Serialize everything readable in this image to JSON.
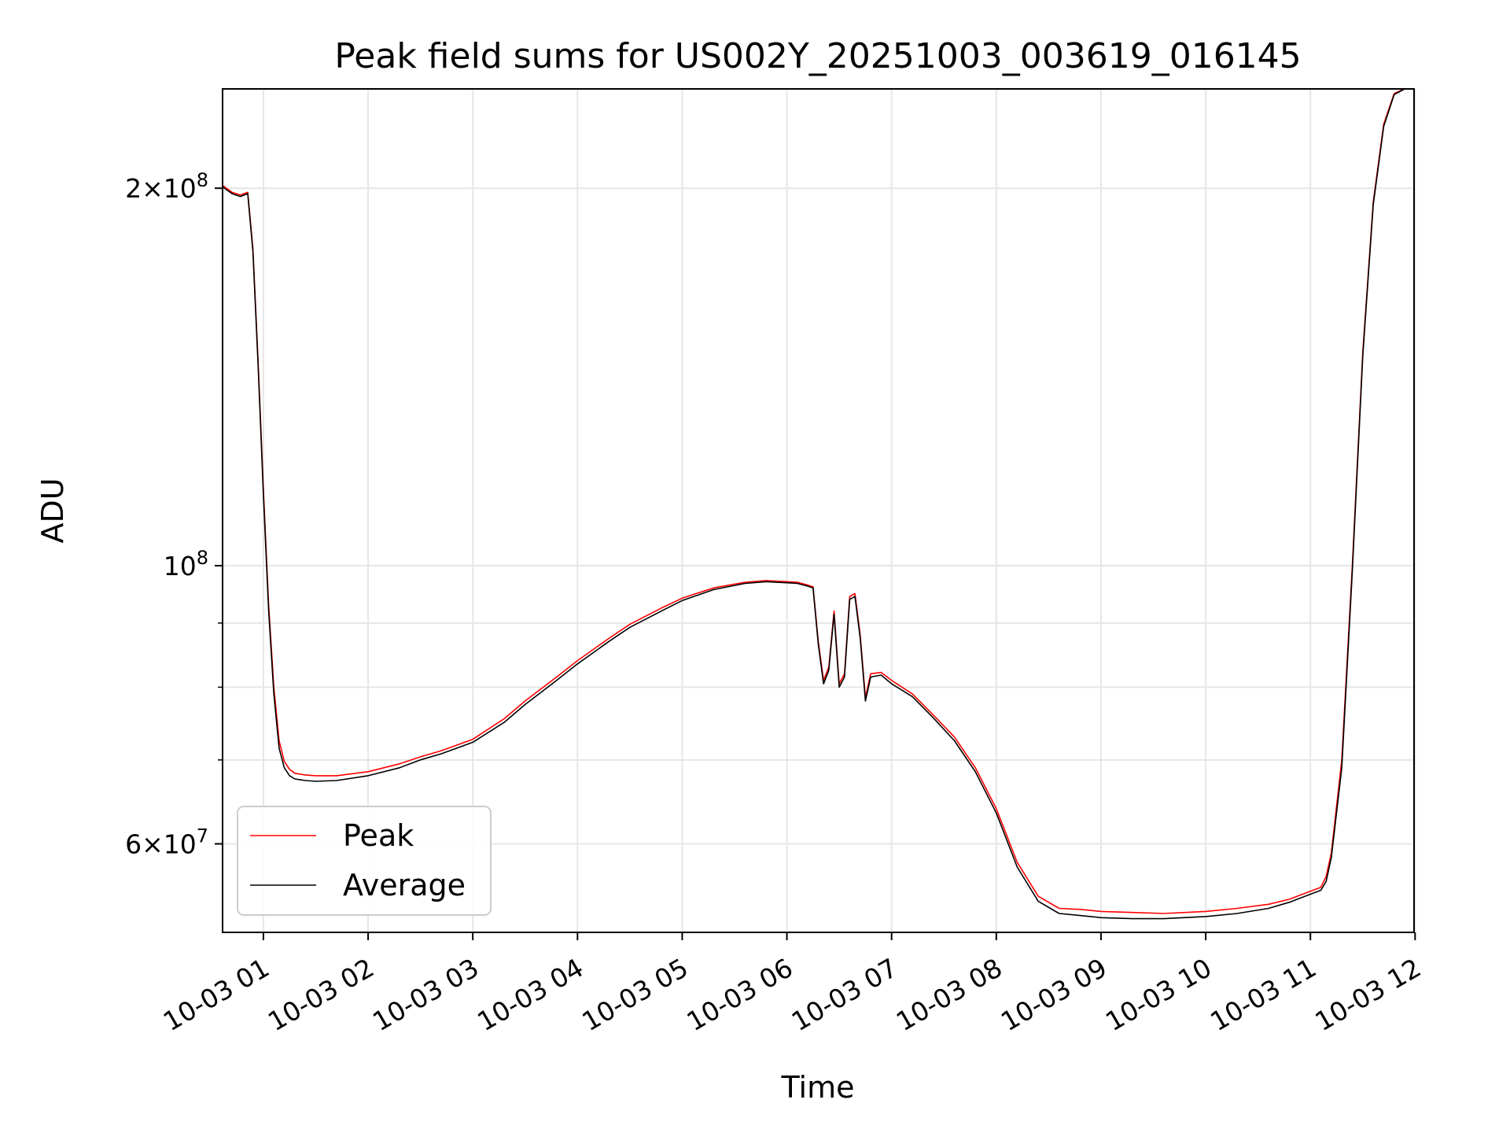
{
  "chart_data": {
    "type": "line",
    "title": "Peak field sums for US002Y_20251003_003619_016145",
    "xlabel": "Time",
    "ylabel": "ADU",
    "yscale": "log",
    "x_unit": "hours since 10-03 00:00",
    "xlim": [
      0.61,
      11.99
    ],
    "ylim": [
      51000000,
      240000000
    ],
    "grid": true,
    "legend_position": "lower-left",
    "x_ticks": [
      {
        "value": 1,
        "label": "10-03 01"
      },
      {
        "value": 2,
        "label": "10-03 02"
      },
      {
        "value": 3,
        "label": "10-03 03"
      },
      {
        "value": 4,
        "label": "10-03 04"
      },
      {
        "value": 5,
        "label": "10-03 05"
      },
      {
        "value": 6,
        "label": "10-03 06"
      },
      {
        "value": 7,
        "label": "10-03 07"
      },
      {
        "value": 8,
        "label": "10-03 08"
      },
      {
        "value": 9,
        "label": "10-03 09"
      },
      {
        "value": 10,
        "label": "10-03 10"
      },
      {
        "value": 11,
        "label": "10-03 11"
      },
      {
        "value": 12,
        "label": "10-03 12"
      }
    ],
    "y_major_ticks": [
      {
        "value": 60000000,
        "mantissa": "6",
        "times": "×10",
        "exp": "7"
      },
      {
        "value": 100000000,
        "mantissa": "",
        "times": "10",
        "exp": "8"
      },
      {
        "value": 200000000,
        "mantissa": "2",
        "times": "×10",
        "exp": "8"
      }
    ],
    "y_minor_ticks": [
      70000000,
      80000000,
      90000000
    ],
    "series": [
      {
        "name": "Peak",
        "color": "#ff0000",
        "x": [
          0.61,
          0.7,
          0.78,
          0.85,
          0.9,
          0.95,
          1.0,
          1.05,
          1.1,
          1.15,
          1.2,
          1.25,
          1.3,
          1.4,
          1.5,
          1.7,
          2.0,
          2.3,
          2.5,
          2.7,
          3.0,
          3.3,
          3.5,
          3.8,
          4.0,
          4.3,
          4.5,
          4.8,
          5.0,
          5.3,
          5.6,
          5.8,
          6.0,
          6.1,
          6.2,
          6.25,
          6.3,
          6.35,
          6.4,
          6.45,
          6.5,
          6.55,
          6.6,
          6.65,
          6.7,
          6.75,
          6.8,
          6.9,
          7.0,
          7.2,
          7.4,
          7.6,
          7.8,
          8.0,
          8.2,
          8.4,
          8.6,
          8.8,
          9.0,
          9.3,
          9.6,
          10.0,
          10.3,
          10.6,
          10.8,
          10.9,
          11.0,
          11.1,
          11.15,
          11.2,
          11.3,
          11.4,
          11.5,
          11.6,
          11.7,
          11.8,
          11.9,
          11.99
        ],
        "values": [
          201000000,
          198500000,
          197500000,
          198500000,
          179000000,
          145000000,
          115000000,
          93000000,
          80000000,
          72500000,
          69800000,
          68800000,
          68300000,
          68100000,
          68000000,
          68000000,
          68500000,
          69500000,
          70400000,
          71200000,
          72700000,
          75500000,
          78000000,
          81500000,
          84000000,
          87500000,
          89800000,
          92500000,
          94200000,
          96000000,
          97000000,
          97300000,
          97100000,
          97000000,
          96500000,
          96200000,
          87000000,
          81000000,
          83000000,
          92000000,
          80500000,
          82000000,
          94500000,
          95000000,
          88000000,
          78500000,
          82000000,
          82200000,
          81000000,
          79000000,
          76000000,
          73000000,
          69000000,
          64000000,
          58000000,
          54500000,
          53300000,
          53200000,
          53000000,
          52900000,
          52800000,
          53000000,
          53300000,
          53700000,
          54200000,
          54600000,
          55000000,
          55400000,
          56500000,
          59000000,
          70000000,
          100000000,
          148000000,
          195000000,
          225000000,
          238000000,
          240000000,
          240000000
        ]
      },
      {
        "name": "Average",
        "color": "#000000",
        "x": [
          0.61,
          0.7,
          0.78,
          0.85,
          0.9,
          0.95,
          1.0,
          1.05,
          1.1,
          1.15,
          1.2,
          1.25,
          1.3,
          1.4,
          1.5,
          1.7,
          2.0,
          2.3,
          2.5,
          2.7,
          3.0,
          3.3,
          3.5,
          3.8,
          4.0,
          4.3,
          4.5,
          4.8,
          5.0,
          5.3,
          5.6,
          5.8,
          6.0,
          6.1,
          6.2,
          6.25,
          6.3,
          6.35,
          6.4,
          6.45,
          6.5,
          6.55,
          6.6,
          6.65,
          6.7,
          6.75,
          6.8,
          6.9,
          7.0,
          7.2,
          7.4,
          7.6,
          7.8,
          8.0,
          8.2,
          8.4,
          8.6,
          8.8,
          9.0,
          9.3,
          9.6,
          10.0,
          10.3,
          10.6,
          10.8,
          10.9,
          11.0,
          11.1,
          11.15,
          11.2,
          11.3,
          11.4,
          11.5,
          11.6,
          11.7,
          11.8,
          11.9,
          11.99
        ],
        "values": [
          200500000,
          198000000,
          197000000,
          198000000,
          178000000,
          144000000,
          114000000,
          92000000,
          79000000,
          71500000,
          69000000,
          68000000,
          67600000,
          67400000,
          67300000,
          67400000,
          68000000,
          69000000,
          70000000,
          70800000,
          72300000,
          75000000,
          77500000,
          81000000,
          83500000,
          87000000,
          89300000,
          92000000,
          93800000,
          95700000,
          96800000,
          97100000,
          96900000,
          96800000,
          96300000,
          96000000,
          86500000,
          80500000,
          82500000,
          91500000,
          80000000,
          81500000,
          94000000,
          94500000,
          87500000,
          78000000,
          81500000,
          81800000,
          80500000,
          78600000,
          75600000,
          72500000,
          68500000,
          63500000,
          57500000,
          54000000,
          52800000,
          52600000,
          52400000,
          52300000,
          52300000,
          52500000,
          52800000,
          53300000,
          53900000,
          54300000,
          54700000,
          55100000,
          56000000,
          58500000,
          69000000,
          99000000,
          147000000,
          194000000,
          224000000,
          237500000,
          240000000,
          240000000
        ]
      }
    ]
  }
}
